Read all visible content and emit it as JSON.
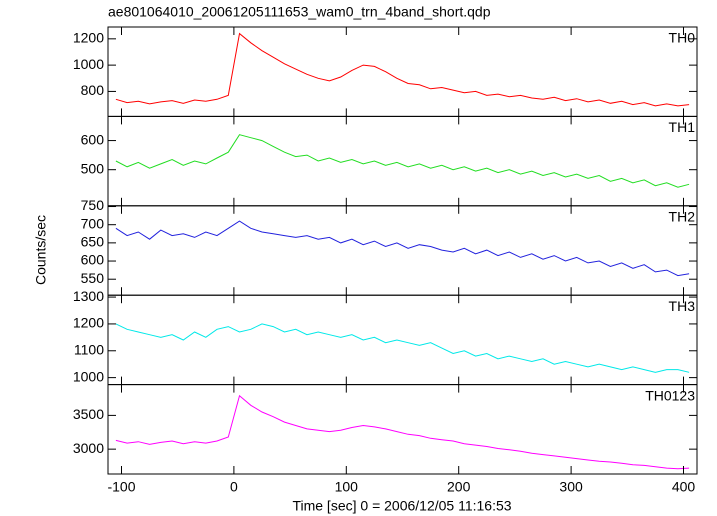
{
  "chart_data": {
    "type": "line",
    "title": "ae801064010_20061205111653_wam0_trn_4band_short.qdp",
    "xlabel": "Time [sec] 0 = 2006/12/05 11:16:53",
    "ylabel": "Counts/sec",
    "xlim": [
      -112,
      412
    ],
    "xticks": [
      -100,
      0,
      100,
      200,
      300,
      400
    ],
    "x": [
      -105,
      -95,
      -85,
      -75,
      -65,
      -55,
      -45,
      -35,
      -25,
      -15,
      -5,
      5,
      15,
      25,
      35,
      45,
      55,
      65,
      75,
      85,
      95,
      105,
      115,
      125,
      135,
      145,
      155,
      165,
      175,
      185,
      195,
      205,
      215,
      225,
      235,
      245,
      255,
      265,
      275,
      285,
      295,
      305,
      315,
      325,
      335,
      345,
      355,
      365,
      375,
      385,
      395,
      405
    ],
    "panels": [
      {
        "name": "TH0",
        "color": "#ff0000",
        "ylim": [
          610,
          1290
        ],
        "yticks": [
          800,
          1000,
          1200
        ],
        "values": [
          740,
          715,
          725,
          705,
          720,
          730,
          710,
          735,
          725,
          740,
          770,
          1240,
          1170,
          1110,
          1060,
          1010,
          970,
          930,
          900,
          880,
          910,
          960,
          1000,
          990,
          950,
          900,
          860,
          850,
          820,
          830,
          810,
          790,
          800,
          770,
          780,
          760,
          770,
          750,
          740,
          755,
          730,
          745,
          720,
          735,
          710,
          725,
          700,
          715,
          690,
          705,
          690,
          700
        ]
      },
      {
        "name": "TH1",
        "color": "#22dd22",
        "ylim": [
          376,
          683
        ],
        "yticks": [
          500,
          600
        ],
        "values": [
          530,
          510,
          525,
          505,
          520,
          535,
          515,
          530,
          520,
          540,
          560,
          620,
          610,
          600,
          580,
          560,
          545,
          550,
          530,
          540,
          525,
          535,
          520,
          530,
          515,
          525,
          510,
          520,
          505,
          515,
          500,
          510,
          495,
          505,
          490,
          500,
          485,
          495,
          480,
          490,
          475,
          485,
          470,
          480,
          460,
          470,
          455,
          465,
          445,
          455,
          440,
          450
        ]
      },
      {
        "name": "TH2",
        "color": "#2222dd",
        "ylim": [
          506,
          752
        ],
        "yticks": [
          550,
          600,
          650,
          700,
          750
        ],
        "values": [
          690,
          670,
          680,
          660,
          685,
          670,
          675,
          665,
          680,
          670,
          690,
          710,
          690,
          680,
          675,
          670,
          665,
          670,
          660,
          665,
          650,
          660,
          645,
          655,
          640,
          650,
          635,
          645,
          640,
          630,
          625,
          635,
          620,
          630,
          615,
          625,
          610,
          620,
          605,
          615,
          600,
          610,
          595,
          600,
          585,
          595,
          580,
          590,
          570,
          575,
          560,
          565
        ]
      },
      {
        "name": "TH3",
        "color": "#00e8e8",
        "ylim": [
          974,
          1307
        ],
        "yticks": [
          1000,
          1100,
          1200,
          1300
        ],
        "values": [
          1200,
          1180,
          1170,
          1160,
          1150,
          1160,
          1140,
          1170,
          1150,
          1180,
          1190,
          1170,
          1180,
          1200,
          1190,
          1170,
          1180,
          1160,
          1170,
          1160,
          1150,
          1160,
          1140,
          1150,
          1130,
          1140,
          1130,
          1120,
          1130,
          1110,
          1090,
          1100,
          1080,
          1090,
          1070,
          1080,
          1070,
          1060,
          1070,
          1050,
          1060,
          1050,
          1040,
          1050,
          1040,
          1030,
          1040,
          1030,
          1020,
          1030,
          1030,
          1020
        ]
      },
      {
        "name": "TH0123",
        "color": "#ff00ff",
        "ylim": [
          2632,
          3956
        ],
        "yticks": [
          3000,
          3500
        ],
        "values": [
          3130,
          3090,
          3110,
          3070,
          3100,
          3120,
          3080,
          3110,
          3090,
          3120,
          3180,
          3790,
          3650,
          3550,
          3480,
          3400,
          3350,
          3300,
          3280,
          3260,
          3280,
          3320,
          3350,
          3330,
          3300,
          3260,
          3220,
          3200,
          3160,
          3140,
          3120,
          3080,
          3060,
          3040,
          3010,
          2990,
          2970,
          2940,
          2920,
          2900,
          2880,
          2860,
          2840,
          2820,
          2810,
          2790,
          2770,
          2760,
          2740,
          2720,
          2710,
          2720
        ]
      }
    ]
  }
}
